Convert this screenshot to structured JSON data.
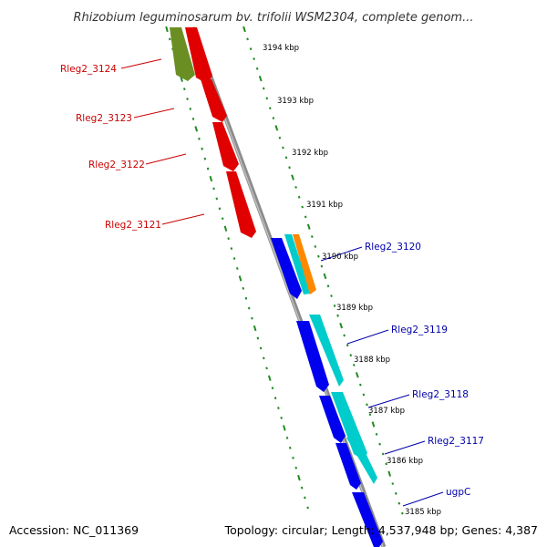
{
  "title": "Rhizobium leguminosarum bv. trifolii WSM2304, complete genom...",
  "accession": "Accession: NC_011369",
  "summary": "Topology: circular; Length: 4,537,948 bp; Genes: 4,387",
  "colors": {
    "strand_left": "#ff0000",
    "strand_left_olive": "#6b8e23",
    "strand_right": "#0000ff",
    "strand_right_cyan": "#00cccc",
    "strand_right_orange": "#ff8800",
    "tick": "#228b22",
    "label_left": "#cc0000",
    "label_right": "#0000aa",
    "backbone": "#8c8c8c"
  },
  "kbp_labels": [
    "3194 kbp",
    "3193 kbp",
    "3192 kbp",
    "3191 kbp",
    "3190 kbp",
    "3189 kbp",
    "3188 kbp",
    "3187 kbp",
    "3186 kbp",
    "3185 kbp"
  ],
  "genes_left": [
    {
      "label": "Rleg2_3124",
      "color": "#cc0000"
    },
    {
      "label": "Rleg2_3123",
      "color": "#cc0000"
    },
    {
      "label": "Rleg2_3122",
      "color": "#cc0000"
    },
    {
      "label": "Rleg2_3121",
      "color": "#cc0000"
    }
  ],
  "genes_right": [
    {
      "label": "Rleg2_3120",
      "color": "#0000aa"
    },
    {
      "label": "Rleg2_3119",
      "color": "#0000aa"
    },
    {
      "label": "Rleg2_3118",
      "color": "#0000aa"
    },
    {
      "label": "Rleg2_3117",
      "color": "#0000aa"
    },
    {
      "label": "ugpC",
      "color": "#0000aa"
    }
  ]
}
